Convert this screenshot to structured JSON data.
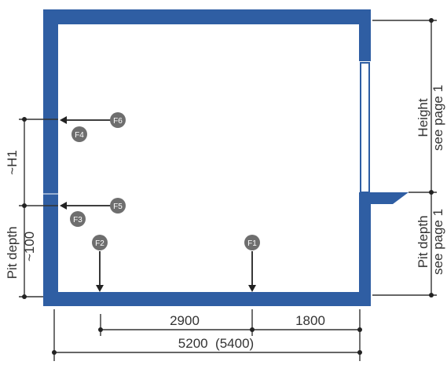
{
  "forces": {
    "f1": "F1",
    "f2": "F2",
    "f3": "F3",
    "f4": "F4",
    "f5": "F5",
    "f6": "F6"
  },
  "dimensions": {
    "segment_left": "2900",
    "segment_right": "1800",
    "overall_width": "5200  (5400)"
  },
  "left_labels": {
    "upper": "~H1",
    "pit_depth": "Pit depth",
    "pit_value": "~100"
  },
  "right_labels": {
    "height": "Height",
    "height_ref": "see page 1",
    "pit_depth": "Pit depth",
    "pit_ref": "see page 1"
  },
  "colors": {
    "wall": "#2f5ea3",
    "badge": "#6e6e6e"
  }
}
